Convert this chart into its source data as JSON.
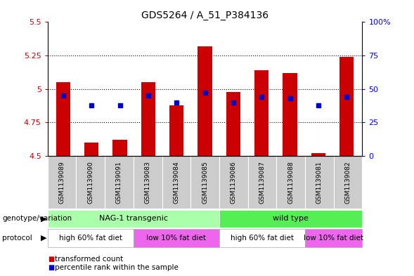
{
  "title": "GDS5264 / A_51_P384136",
  "samples": [
    "GSM1139089",
    "GSM1139090",
    "GSM1139091",
    "GSM1139083",
    "GSM1139084",
    "GSM1139085",
    "GSM1139086",
    "GSM1139087",
    "GSM1139088",
    "GSM1139081",
    "GSM1139082"
  ],
  "red_values": [
    5.05,
    4.6,
    4.62,
    5.05,
    4.88,
    5.32,
    4.98,
    5.14,
    5.12,
    4.52,
    5.24
  ],
  "blue_values_pct": [
    45,
    38,
    38,
    45,
    40,
    47,
    40,
    44,
    43,
    38,
    44
  ],
  "y_min": 4.5,
  "y_max": 5.5,
  "y_ticks": [
    4.5,
    4.75,
    5.0,
    5.25,
    5.5
  ],
  "y_tick_labels": [
    "4.5",
    "4.75",
    "5",
    "5.25",
    "5.5"
  ],
  "right_y_ticks": [
    0,
    25,
    50,
    75,
    100
  ],
  "right_y_labels": [
    "0",
    "25",
    "50",
    "75",
    "100%"
  ],
  "red_color": "#cc0000",
  "blue_color": "#0000cc",
  "genotype_groups": [
    {
      "label": "NAG-1 transgenic",
      "start": 0,
      "end": 5,
      "color": "#aaffaa"
    },
    {
      "label": "wild type",
      "start": 6,
      "end": 10,
      "color": "#55ee55"
    }
  ],
  "protocol_groups": [
    {
      "label": "high 60% fat diet",
      "start": 0,
      "end": 2,
      "color": "#ffffff"
    },
    {
      "label": "low 10% fat diet",
      "start": 3,
      "end": 5,
      "color": "#ee66ee"
    },
    {
      "label": "high 60% fat diet",
      "start": 6,
      "end": 8,
      "color": "#ffffff"
    },
    {
      "label": "low 10% fat diet",
      "start": 9,
      "end": 10,
      "color": "#ee66ee"
    }
  ],
  "legend_red": "transformed count",
  "legend_blue": "percentile rank within the sample",
  "bar_width": 0.5,
  "sample_bg": "#cccccc",
  "plot_bg": "#ffffff"
}
